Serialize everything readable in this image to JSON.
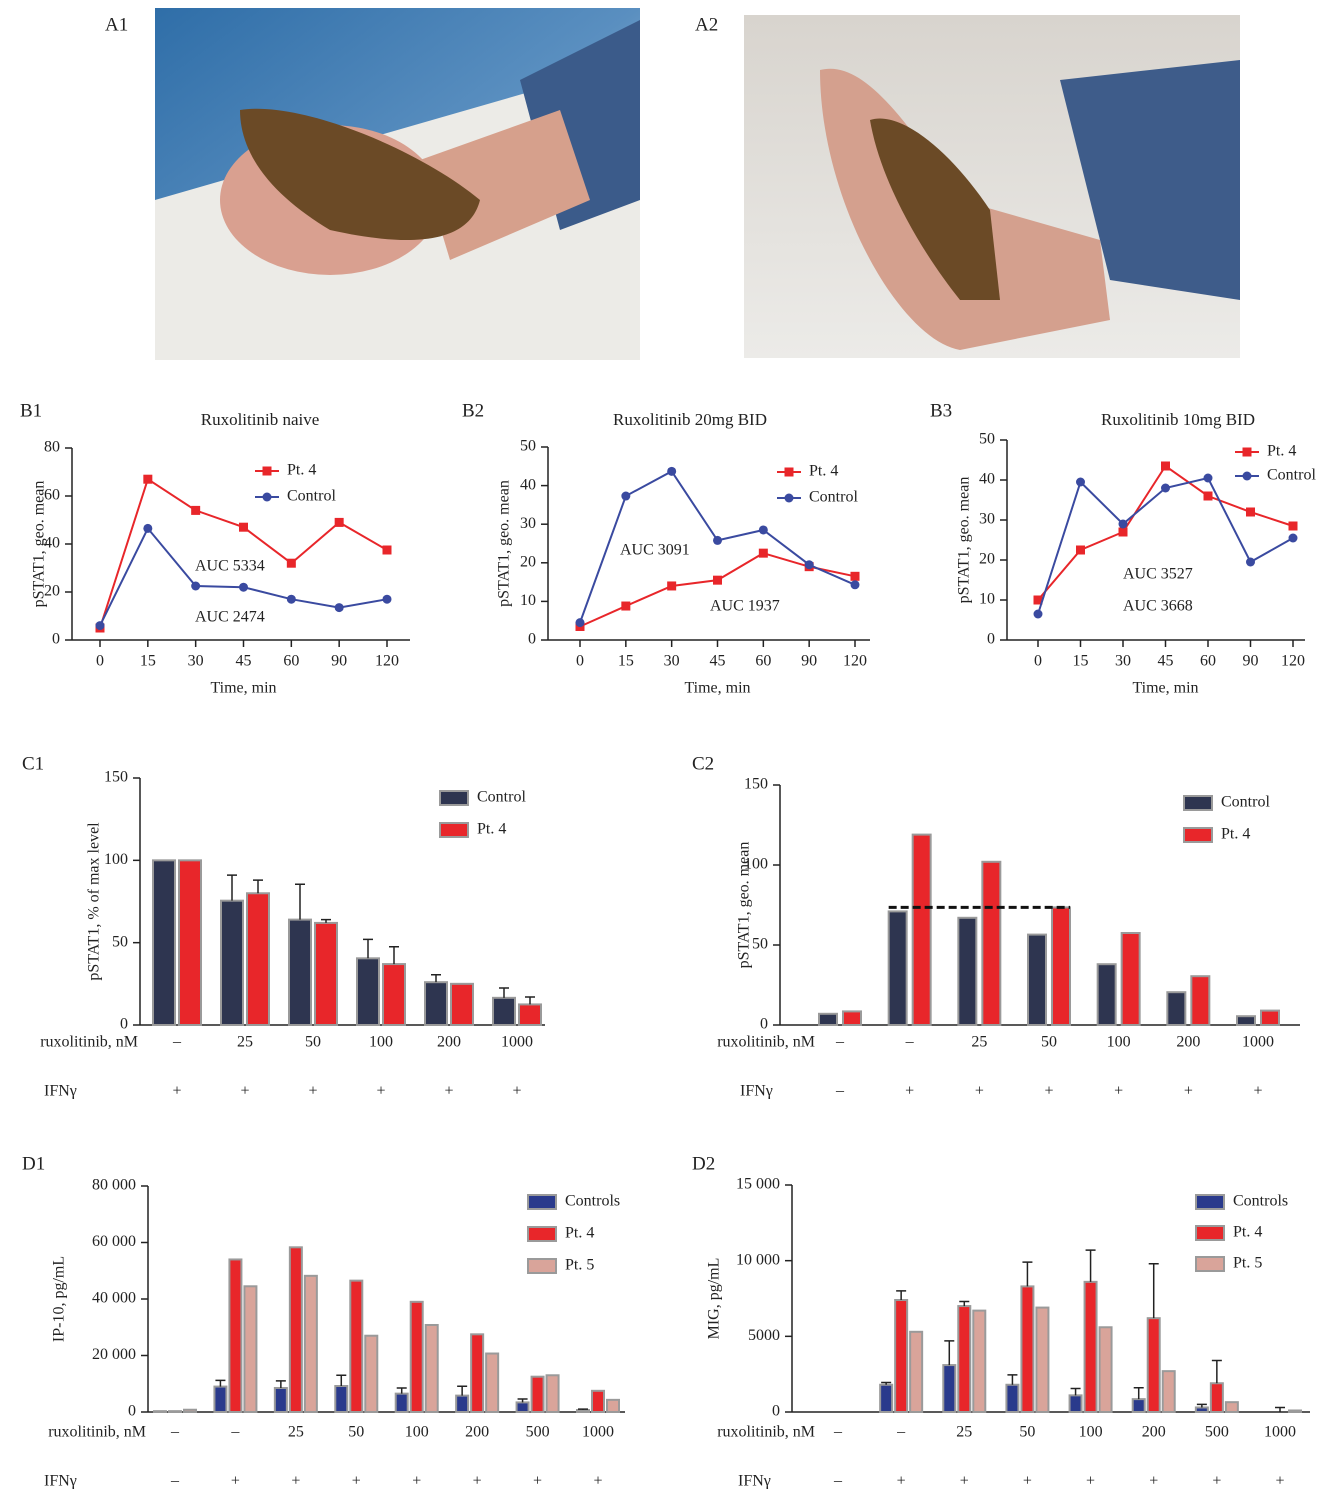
{
  "photos": [
    {
      "label": "A1"
    },
    {
      "label": "A2"
    }
  ],
  "chart_data": [
    {
      "type": "line",
      "panel_label": "B1",
      "title": "Ruxolitinib naive",
      "ylabel": "pSTAT1, geo. mean",
      "xlabel": "Time, min",
      "categories": [
        "0",
        "15",
        "30",
        "45",
        "60",
        "90",
        "120"
      ],
      "ylim": [
        0,
        80
      ],
      "yticks": [
        0,
        20,
        40,
        60,
        80
      ],
      "series": [
        {
          "name": "Pt. 4",
          "color": "#e8262a",
          "marker": "square",
          "values": [
            5,
            67,
            54,
            47,
            32,
            49,
            37.5
          ]
        },
        {
          "name": "Control",
          "color": "#3a4aa0",
          "marker": "circle",
          "values": [
            6,
            46.5,
            22.5,
            22,
            17,
            13.5,
            17
          ]
        }
      ],
      "annotations": [
        {
          "text": "AUC 5334",
          "color": "#e8262a"
        },
        {
          "text": "AUC 2474",
          "color": "#3a4aa0"
        }
      ]
    },
    {
      "type": "line",
      "panel_label": "B2",
      "title": "Ruxolitinib 20mg BID",
      "ylabel": "pSTAT1, geo. mean",
      "xlabel": "Time, min",
      "categories": [
        "0",
        "15",
        "30",
        "45",
        "60",
        "90",
        "120"
      ],
      "ylim": [
        0,
        50
      ],
      "yticks": [
        0,
        10,
        20,
        30,
        40,
        50
      ],
      "series": [
        {
          "name": "Pt. 4",
          "color": "#e8262a",
          "marker": "square",
          "values": [
            3.5,
            8.8,
            14,
            15.5,
            22.5,
            19,
            16.5
          ]
        },
        {
          "name": "Control",
          "color": "#3a4aa0",
          "marker": "circle",
          "values": [
            4.5,
            37.3,
            43.7,
            25.8,
            28.5,
            19.5,
            14.3
          ]
        }
      ],
      "annotations": [
        {
          "text": "AUC 3091",
          "color": "#3a4aa0"
        },
        {
          "text": "AUC 1937",
          "color": "#e8262a"
        }
      ]
    },
    {
      "type": "line",
      "panel_label": "B3",
      "title": "Ruxolitinib 10mg BID",
      "ylabel": "pSTAT1, geo. mean",
      "xlabel": "Time, min",
      "categories": [
        "0",
        "15",
        "30",
        "45",
        "60",
        "90",
        "120"
      ],
      "ylim": [
        0,
        50
      ],
      "yticks": [
        0,
        10,
        20,
        30,
        40,
        50
      ],
      "series": [
        {
          "name": "Pt. 4",
          "color": "#e8262a",
          "marker": "square",
          "values": [
            10,
            22.5,
            27,
            43.5,
            36,
            32,
            28.5
          ]
        },
        {
          "name": "Control",
          "color": "#3a4aa0",
          "marker": "circle",
          "values": [
            6.5,
            39.5,
            29,
            38,
            40.5,
            19.5,
            25.5
          ]
        }
      ],
      "annotations": [
        {
          "text": "AUC 3527",
          "color": "#3a4aa0"
        },
        {
          "text": "AUC 3668",
          "color": "#e8262a"
        }
      ]
    },
    {
      "type": "bar",
      "panel_label": "C1",
      "ylabel": "pSTAT1, % of max level",
      "category_label": "ruxolitinib, nM",
      "categories": [
        "–",
        "25",
        "50",
        "100",
        "200",
        "1000"
      ],
      "second_row": {
        "label": "IFNγ",
        "values": [
          "+",
          "+",
          "+",
          "+",
          "+",
          "+"
        ]
      },
      "ylim": [
        0,
        150
      ],
      "yticks": [
        0,
        50,
        100,
        150
      ],
      "series": [
        {
          "name": "Control",
          "color": "#2e3550",
          "values": [
            100,
            75.5,
            64,
            40.5,
            26,
            16.5
          ],
          "errors": [
            0,
            15.5,
            21.5,
            11.5,
            4.5,
            6
          ]
        },
        {
          "name": "Pt. 4",
          "color": "#e8262a",
          "values": [
            100,
            80,
            62,
            37,
            25,
            12.5
          ],
          "errors": [
            0,
            8,
            2,
            10.5,
            0,
            4.5
          ]
        }
      ]
    },
    {
      "type": "bar",
      "panel_label": "C2",
      "ylabel": "pSTAT1, geo. mean",
      "category_label": "ruxolitinib, nM",
      "categories": [
        "–",
        "–",
        "25",
        "50",
        "100",
        "200",
        "1000"
      ],
      "second_row": {
        "label": "IFNγ",
        "values": [
          "–",
          "+",
          "+",
          "+",
          "+",
          "+",
          "+"
        ]
      },
      "ylim": [
        0,
        150
      ],
      "yticks": [
        0,
        50,
        100,
        150
      ],
      "series": [
        {
          "name": "Control",
          "color": "#2e3550",
          "values": [
            7,
            71,
            67,
            56.5,
            38,
            20.5,
            5.5
          ]
        },
        {
          "name": "Pt. 4",
          "color": "#e8262a",
          "values": [
            8.5,
            119,
            102,
            73.5,
            57.5,
            30.5,
            9
          ]
        }
      ]
    },
    {
      "type": "bar",
      "panel_label": "D1",
      "ylabel": "IP-10, pg/mL",
      "category_label": "ruxolitinib, nM",
      "categories": [
        "–",
        "–",
        "25",
        "50",
        "100",
        "200",
        "500",
        "1000"
      ],
      "second_row": {
        "label": "IFNγ",
        "values": [
          "–",
          "+",
          "+",
          "+",
          "+",
          "+",
          "+",
          "+"
        ]
      },
      "ylim": [
        0,
        80000
      ],
      "yticks": [
        0,
        {
          "value": 20000,
          "label": "20 000"
        },
        {
          "value": 40000,
          "label": "40 000"
        },
        {
          "value": 60000,
          "label": "60 000"
        },
        {
          "value": 80000,
          "label": "80 000"
        }
      ],
      "series": [
        {
          "name": "Controls",
          "color": "#2a3a8c",
          "values": [
            300,
            9000,
            8500,
            9200,
            6500,
            5800,
            3400,
            700
          ],
          "errors": [
            0,
            2200,
            2500,
            3800,
            2000,
            3300,
            1200,
            300
          ]
        },
        {
          "name": "Pt. 4",
          "color": "#e8262a",
          "values": [
            300,
            54000,
            58300,
            46500,
            39000,
            27500,
            12500,
            7500
          ]
        },
        {
          "name": "Pt. 5",
          "color": "#d9a49a",
          "values": [
            800,
            44500,
            48200,
            27000,
            30800,
            20700,
            13000,
            4300
          ]
        }
      ]
    },
    {
      "type": "bar",
      "panel_label": "D2",
      "ylabel": "MIG, pg/mL",
      "category_label": "ruxolitinib, nM",
      "categories": [
        "–",
        "–",
        "25",
        "50",
        "100",
        "200",
        "500",
        "1000"
      ],
      "second_row": {
        "label": "IFNγ",
        "values": [
          "–",
          "+",
          "+",
          "+",
          "+",
          "+",
          "+",
          "+"
        ]
      },
      "ylim": [
        0,
        15000
      ],
      "yticks": [
        0,
        5000,
        {
          "value": 10000,
          "label": "10 000"
        },
        {
          "value": 15000,
          "label": "15 000"
        }
      ],
      "series": [
        {
          "name": "Controls",
          "color": "#2a3a8c",
          "values": [
            0,
            1800,
            3100,
            1800,
            1100,
            850,
            300,
            0
          ],
          "errors": [
            0,
            150,
            1600,
            650,
            450,
            750,
            200,
            0
          ]
        },
        {
          "name": "Pt. 4",
          "color": "#e8262a",
          "values": [
            0,
            7400,
            7000,
            8300,
            8600,
            6200,
            1900,
            0
          ],
          "errors": [
            0,
            600,
            300,
            1600,
            2100,
            3600,
            1500,
            300
          ]
        },
        {
          "name": "Pt. 5",
          "color": "#d9a49a",
          "values": [
            0,
            5300,
            6700,
            6900,
            5600,
            2700,
            650,
            100
          ]
        }
      ]
    }
  ]
}
